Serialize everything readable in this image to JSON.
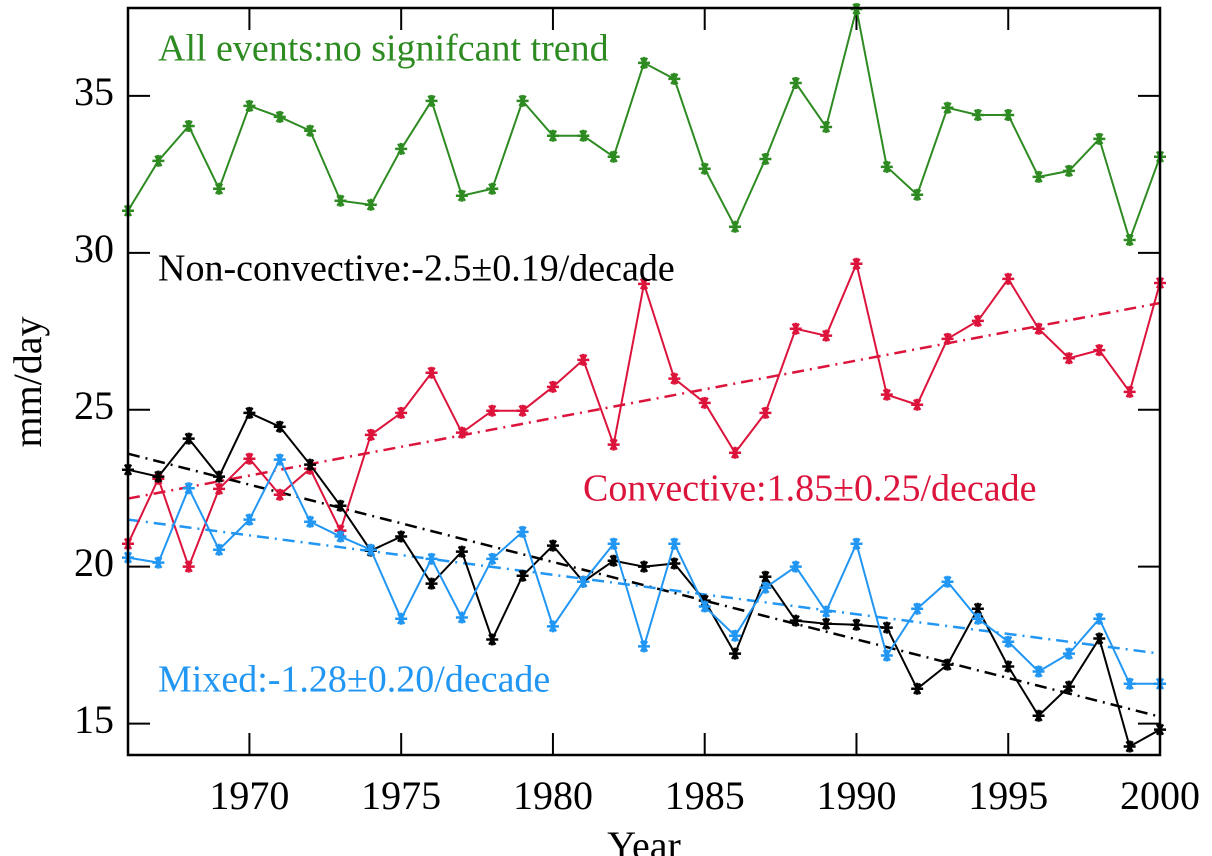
{
  "chart_data": {
    "type": "line",
    "x_label": "Year",
    "y_label": "mm/day",
    "x": [
      1966,
      1967,
      1968,
      1969,
      1970,
      1971,
      1972,
      1973,
      1974,
      1975,
      1976,
      1977,
      1978,
      1979,
      1980,
      1981,
      1982,
      1983,
      1984,
      1985,
      1986,
      1987,
      1988,
      1989,
      1990,
      1991,
      1992,
      1993,
      1994,
      1995,
      1996,
      1997,
      1998,
      1999,
      2000
    ],
    "xlim": [
      1966,
      2000
    ],
    "xticks": [
      1970,
      1975,
      1980,
      1985,
      1990,
      1995,
      2000
    ],
    "ylim": [
      14,
      37.8
    ],
    "yticks": [
      15,
      20,
      25,
      30,
      35
    ],
    "grid": false,
    "series": [
      {
        "label": "All events:no signifcant trend",
        "color": "#2e8b22",
        "values": [
          31.34,
          32.93,
          34.04,
          32.04,
          34.68,
          34.33,
          33.89,
          31.66,
          31.53,
          33.31,
          34.84,
          31.82,
          32.04,
          34.84,
          33.73,
          33.73,
          33.06,
          36.05,
          35.54,
          32.68,
          30.83,
          32.99,
          35.41,
          34.01,
          37.77,
          32.74,
          31.85,
          34.62,
          34.39,
          34.39,
          32.42,
          32.61,
          33.63,
          30.41,
          33.06
        ]
      },
      {
        "label": "Convective:1.85±0.25/decade",
        "color": "#dc143c",
        "values": [
          20.73,
          22.8,
          20.0,
          22.48,
          23.44,
          22.29,
          23.12,
          21.15,
          24.2,
          24.9,
          26.18,
          24.27,
          24.97,
          24.97,
          25.73,
          26.59,
          23.89,
          29.01,
          25.99,
          25.22,
          23.63,
          24.9,
          27.58,
          27.36,
          29.65,
          25.48,
          25.16,
          27.26,
          27.83,
          29.17,
          27.58,
          26.64,
          26.9,
          25.57,
          29.04
        ],
        "trend": [
          22.17,
          28.4
        ]
      },
      {
        "label": "Non-convective:-2.5±0.19/decade",
        "color": "#000000",
        "values": [
          23.09,
          22.87,
          24.08,
          22.87,
          24.9,
          24.46,
          23.25,
          21.94,
          20.51,
          20.96,
          19.46,
          20.48,
          17.68,
          19.71,
          20.67,
          19.52,
          20.19,
          20.0,
          20.1,
          18.92,
          17.23,
          19.68,
          18.28,
          18.18,
          18.15,
          18.06,
          16.11,
          16.88,
          18.66,
          16.82,
          15.25,
          16.18,
          17.71,
          14.27,
          14.81
        ],
        "trend": [
          23.6,
          15.22
        ]
      },
      {
        "label": "Mixed:-1.28±0.20/decade",
        "color": "#2196f3",
        "values": [
          20.29,
          20.13,
          22.5,
          20.54,
          21.5,
          23.41,
          21.43,
          20.96,
          20.54,
          18.34,
          20.25,
          18.38,
          20.25,
          21.11,
          18.1,
          19.52,
          20.73,
          17.46,
          20.73,
          18.73,
          17.8,
          19.33,
          20.0,
          18.57,
          20.73,
          17.17,
          18.66,
          19.52,
          18.34,
          17.61,
          16.66,
          17.23,
          18.34,
          16.27,
          16.27
        ],
        "trend": [
          21.5,
          17.23
        ]
      }
    ]
  }
}
